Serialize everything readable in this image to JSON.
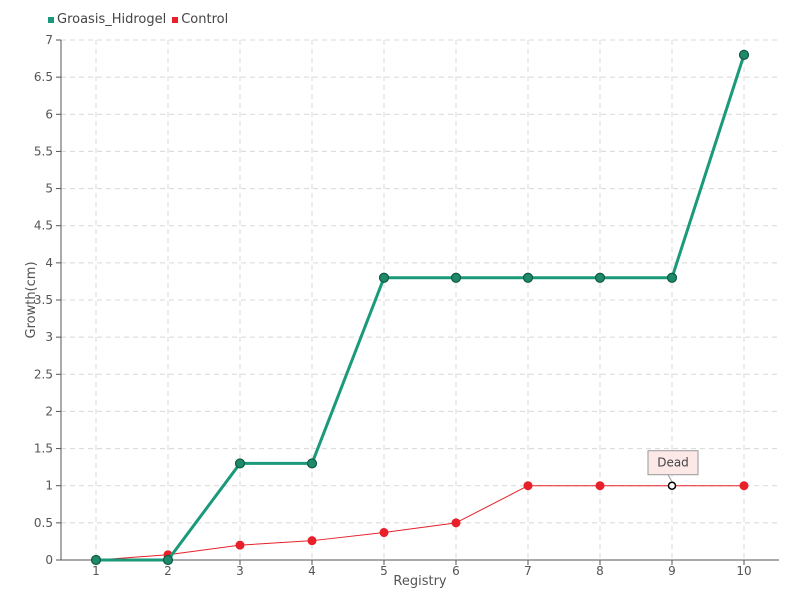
{
  "chart_data": {
    "type": "line",
    "title": "",
    "xlabel": "Registry",
    "ylabel": "Growth(cm)",
    "categories": [
      "1",
      "2",
      "3",
      "4",
      "5",
      "6",
      "7",
      "8",
      "9",
      "10"
    ],
    "ylim": [
      0,
      7
    ],
    "yticks": [
      "0",
      "0.5",
      "1",
      "1.5",
      "2",
      "2.5",
      "3",
      "3.5",
      "4",
      "4.5",
      "5",
      "5.5",
      "6",
      "6.5",
      "7"
    ],
    "grid": true,
    "legend_position": "top-left",
    "series": [
      {
        "name": "Groasis_Hidrogel",
        "color": "#1a9a7a",
        "values": [
          0,
          0,
          1.3,
          1.3,
          3.8,
          3.8,
          3.8,
          3.8,
          3.8,
          6.8
        ]
      },
      {
        "name": "Control",
        "color": "#e8202a",
        "values": [
          0,
          0.07,
          0.2,
          0.26,
          0.37,
          0.5,
          1.0,
          1.0,
          1.0,
          1.0
        ]
      }
    ],
    "annotations": [
      {
        "text": "Dead",
        "series": "Control",
        "category": "9",
        "value": 1.0
      }
    ]
  }
}
